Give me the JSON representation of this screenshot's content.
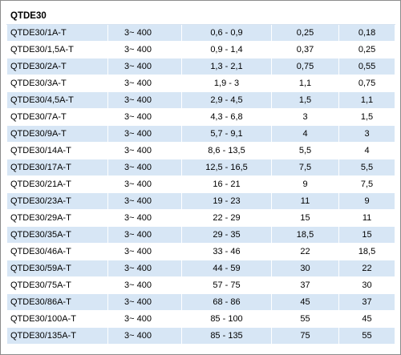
{
  "table": {
    "title": "QTDE30",
    "rows": [
      [
        "QTDE30/1A-T",
        "3~ 400",
        "0,6 - 0,9",
        "0,25",
        "0,18"
      ],
      [
        "QTDE30/1,5A-T",
        "3~ 400",
        "0,9 - 1,4",
        "0,37",
        "0,25"
      ],
      [
        "QTDE30/2A-T",
        "3~ 400",
        "1,3 - 2,1",
        "0,75",
        "0,55"
      ],
      [
        "QTDE30/3A-T",
        "3~ 400",
        "1,9 - 3",
        "1,1",
        "0,75"
      ],
      [
        "QTDE30/4,5A-T",
        "3~ 400",
        "2,9 - 4,5",
        "1,5",
        "1,1"
      ],
      [
        "QTDE30/7A-T",
        "3~ 400",
        "4,3 - 6,8",
        "3",
        "1,5"
      ],
      [
        "QTDE30/9A-T",
        "3~ 400",
        "5,7 - 9,1",
        "4",
        "3"
      ],
      [
        "QTDE30/14A-T",
        "3~ 400",
        "8,6 - 13,5",
        "5,5",
        "4"
      ],
      [
        "QTDE30/17A-T",
        "3~ 400",
        "12,5 - 16,5",
        "7,5",
        "5,5"
      ],
      [
        "QTDE30/21A-T",
        "3~ 400",
        "16 - 21",
        "9",
        "7,5"
      ],
      [
        "QTDE30/23A-T",
        "3~ 400",
        "19 - 23",
        "11",
        "9"
      ],
      [
        "QTDE30/29A-T",
        "3~ 400",
        "22 - 29",
        "15",
        "11"
      ],
      [
        "QTDE30/35A-T",
        "3~ 400",
        "29 - 35",
        "18,5",
        "15"
      ],
      [
        "QTDE30/46A-T",
        "3~ 400",
        "33 - 46",
        "22",
        "18,5"
      ],
      [
        "QTDE30/59A-T",
        "3~ 400",
        "44 - 59",
        "30",
        "22"
      ],
      [
        "QTDE30/75A-T",
        "3~ 400",
        "57 - 75",
        "37",
        "30"
      ],
      [
        "QTDE30/86A-T",
        "3~ 400",
        "68 - 86",
        "45",
        "37"
      ],
      [
        "QTDE30/100A-T",
        "3~ 400",
        "85 - 100",
        "55",
        "45"
      ],
      [
        "QTDE30/135A-T",
        "3~ 400",
        "85 - 135",
        "75",
        "55"
      ]
    ]
  }
}
